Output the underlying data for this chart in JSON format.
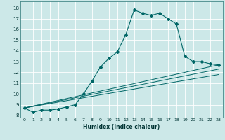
{
  "xlabel": "Humidex (Indice chaleur)",
  "bg_color": "#cce8e8",
  "grid_color": "#aacccc",
  "line_color": "#006666",
  "xlim": [
    -0.5,
    23.5
  ],
  "ylim": [
    7.8,
    18.6
  ],
  "xticks": [
    0,
    1,
    2,
    3,
    4,
    5,
    6,
    7,
    8,
    9,
    10,
    11,
    12,
    13,
    14,
    15,
    16,
    17,
    18,
    19,
    20,
    21,
    22,
    23
  ],
  "yticks": [
    8,
    9,
    10,
    11,
    12,
    13,
    14,
    15,
    16,
    17,
    18
  ],
  "curve1_x": [
    0,
    1,
    2,
    3,
    4,
    5,
    6,
    7,
    8,
    9,
    10,
    11,
    12,
    13,
    14,
    15,
    16,
    17,
    18,
    19,
    20,
    21,
    22,
    23
  ],
  "curve1_y": [
    8.7,
    8.3,
    8.5,
    8.5,
    8.6,
    8.8,
    9.0,
    10.0,
    11.2,
    12.5,
    13.3,
    13.9,
    15.5,
    17.8,
    17.5,
    17.3,
    17.5,
    17.0,
    16.5,
    13.5,
    13.0,
    13.0,
    12.8,
    12.7
  ],
  "fan_lines": [
    {
      "x": [
        0,
        23
      ],
      "y": [
        8.7,
        12.7
      ]
    },
    {
      "x": [
        0,
        23
      ],
      "y": [
        8.7,
        12.3
      ]
    },
    {
      "x": [
        0,
        23
      ],
      "y": [
        8.7,
        11.8
      ]
    }
  ]
}
